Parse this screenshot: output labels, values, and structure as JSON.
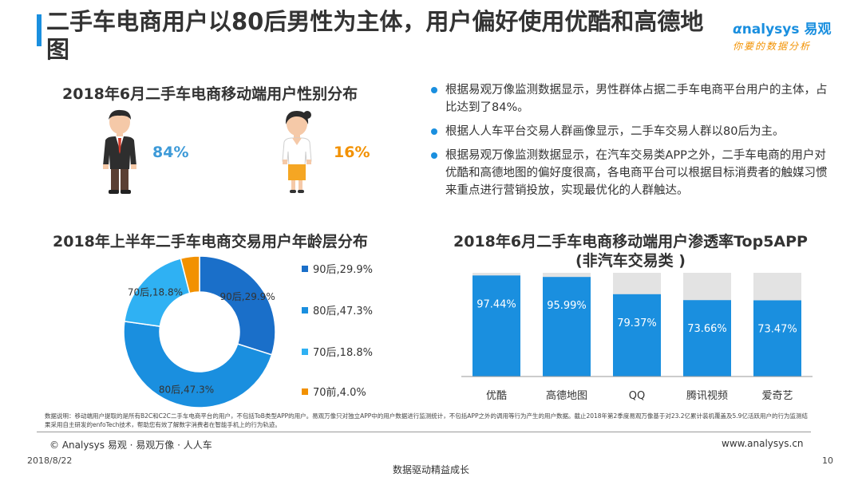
{
  "title": "二手车电商用户以80后男性为主体，用户偏好使用优酷和高德地图",
  "logo": {
    "brand_en": "nalysys",
    "brand_cn": "易观",
    "tagline": "你要的数据分析"
  },
  "gender": {
    "title": "2018年6月二手车电商移动端用户性别分布",
    "male_pct": "84%",
    "female_pct": "16%"
  },
  "bullets": [
    "根据易观万像监测数据显示，男性群体占据二手车电商平台用户的主体，占比达到了84%。",
    "根据人人车平台交易人群画像显示，二手车交易人群以80后为主。",
    "根据易观万像监测数据显示，在汽车交易类APP之外，二手车电商的用户对优酷和高德地图的偏好度很高，各电商平台可以根据目标消费者的触媒习惯来重点进行营销投放，实现最优化的人群触达。"
  ],
  "chart_data": [
    {
      "type": "pie",
      "title": "2018年上半年二手车电商交易用户年龄层分布",
      "labels": [
        "90后",
        "80后",
        "70后",
        "70前"
      ],
      "values": [
        29.9,
        47.3,
        18.8,
        4.0
      ],
      "slice_labels": [
        "90后,29.9%",
        "80后,47.3%",
        "70后,18.8%",
        ""
      ],
      "legend": [
        "90后,29.9%",
        "80后,47.3%",
        "70后,18.8%",
        "70前,4.0%"
      ],
      "colors": [
        "#1a6fc9",
        "#1a8fdf",
        "#2fb1f3",
        "#f29100"
      ],
      "donut": true,
      "legend_position": "right"
    },
    {
      "type": "bar",
      "title": "2018年6月二手车电商移动端用户渗透率Top5APP",
      "subtitle": "(非汽车交易类 )",
      "categories": [
        "优酷",
        "高德地图",
        "QQ",
        "腾讯视频",
        "爱奇艺"
      ],
      "values": [
        97.44,
        95.99,
        79.37,
        73.66,
        73.47
      ],
      "value_labels": [
        "97.44%",
        "95.99%",
        "79.37%",
        "73.66%",
        "73.47%"
      ],
      "ylim": [
        0,
        100
      ],
      "bar_color": "#1a8fdf",
      "background_color": "#e3e3e3"
    }
  ],
  "footer": {
    "note": "数据说明：移动端用户提取的是所有B2C和C2C二手车电商平台的用户，不包括ToB类型APP的用户。易观万像只对独立APP中的用户数据进行监测统计，不包括APP之外的调用等行为产生的用户数据。截止2018年第2季度易观万像基于对23.2亿累计装机覆盖及5.9亿活跃用户的行为监测结果采用自主研发的enfoTech技术，帮助您有效了解数字消费者在智能手机上的行为轨迹。",
    "copyright": "© Analysys 易观 · 易观万像 · 人人车",
    "url": "www.analysys.cn",
    "date": "2018/8/22",
    "page": "10",
    "tagline": "数据驱动精益成长"
  }
}
